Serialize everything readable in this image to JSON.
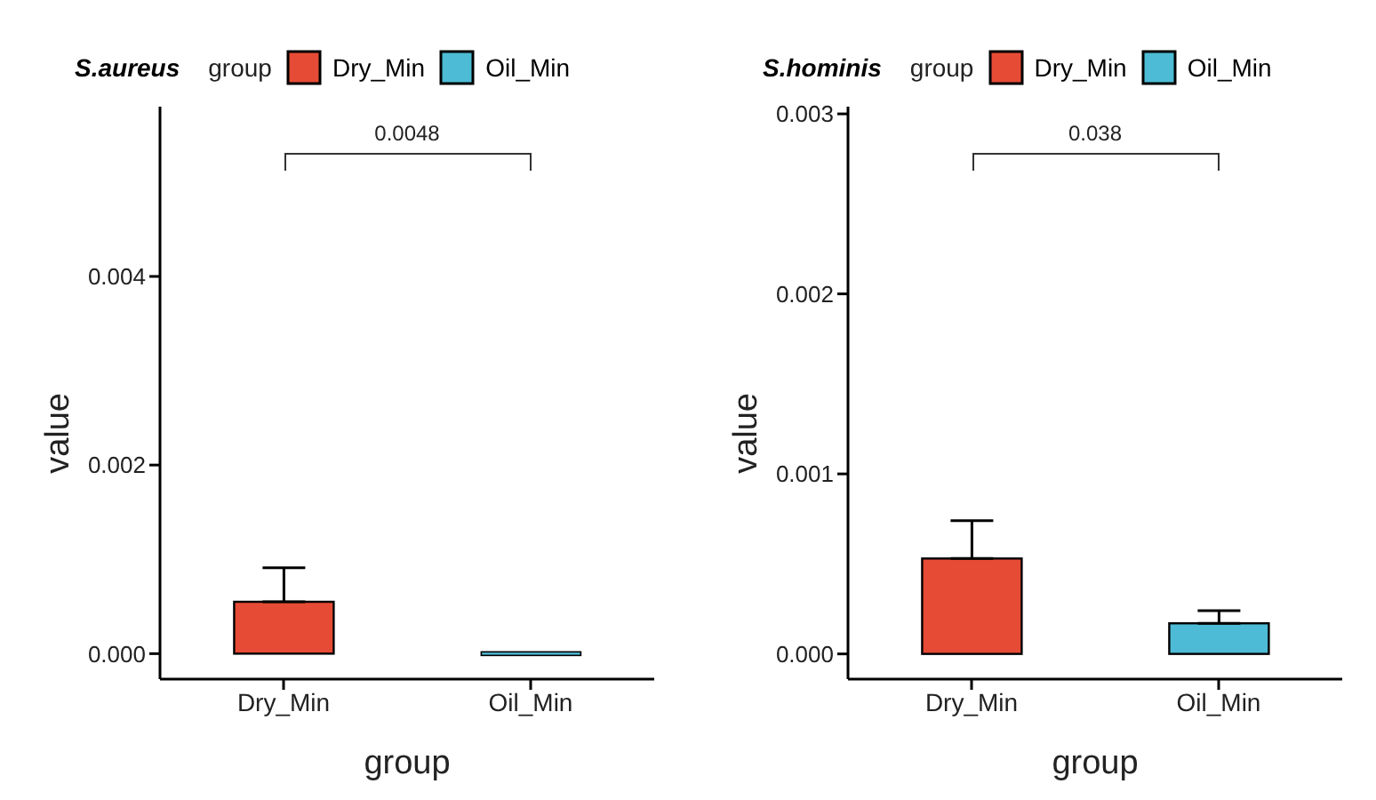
{
  "chart_data": [
    {
      "type": "bar",
      "title": "S.aureus",
      "legend_title": "group",
      "xlabel": "group",
      "ylabel": "value",
      "categories": [
        "Dry_Min",
        "Oil_Min"
      ],
      "series": [
        {
          "name": "Dry_Min",
          "color": "#e64b35",
          "values": [
            0.00055,
            null
          ],
          "errors": [
            [
              0.00055,
              0.00091
            ],
            null
          ]
        },
        {
          "name": "Oil_Min",
          "color": "#4dbbd5",
          "values": [
            null,
            0
          ],
          "errors": [
            null,
            null
          ]
        }
      ],
      "ylim": [
        -0.00027,
        0.0058
      ],
      "yticks": [
        {
          "value": 0,
          "label": "0.000"
        },
        {
          "value": 0.002,
          "label": "0.002"
        },
        {
          "value": 0.004,
          "label": "0.004"
        }
      ],
      "legend": "top",
      "grid": false,
      "annotations": [
        "0.0048"
      ]
    },
    {
      "type": "bar",
      "title": "S.hominis",
      "legend_title": "group",
      "xlabel": "group",
      "ylabel": "value",
      "categories": [
        "Dry_Min",
        "Oil_Min"
      ],
      "series": [
        {
          "name": "Dry_Min",
          "color": "#e64b35",
          "values": [
            0.00053,
            null
          ],
          "errors": [
            [
              0.00053,
              0.00074
            ],
            null
          ]
        },
        {
          "name": "Oil_Min",
          "color": "#4dbbd5",
          "values": [
            null,
            0.00017
          ],
          "errors": [
            null,
            [
              0.00017,
              0.00024
            ]
          ]
        }
      ],
      "ylim": [
        -0.00014,
        0.00304
      ],
      "yticks": [
        {
          "value": 0,
          "label": "0.000"
        },
        {
          "value": 0.001,
          "label": "0.001"
        },
        {
          "value": 0.002,
          "label": "0.002"
        },
        {
          "value": 0.003,
          "label": "0.003"
        }
      ],
      "legend": "top",
      "grid": false,
      "annotations": [
        "0.038"
      ]
    }
  ]
}
